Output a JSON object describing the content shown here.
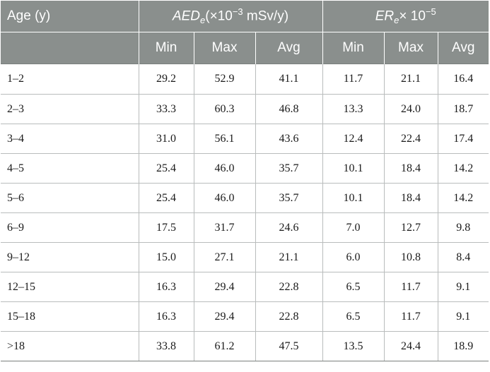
{
  "header": {
    "age_label": "Age (y)",
    "aed_base": "AED",
    "aed_sub": "e",
    "aed_tail": "(×10",
    "aed_exp": "−3",
    "aed_unit": " mSv/y)",
    "er_base": "ER",
    "er_sub": "e",
    "er_tail": "× 10",
    "er_exp": "−5",
    "sub_headers": [
      "Min",
      "Max",
      "Avg",
      "Min",
      "Max",
      "Avg"
    ]
  },
  "rows": [
    {
      "age": "1–2",
      "v": [
        "29.2",
        "52.9",
        "41.1",
        "11.7",
        "21.1",
        "16.4"
      ]
    },
    {
      "age": "2–3",
      "v": [
        "33.3",
        "60.3",
        "46.8",
        "13.3",
        "24.0",
        "18.7"
      ]
    },
    {
      "age": "3–4",
      "v": [
        "31.0",
        "56.1",
        "43.6",
        "12.4",
        "22.4",
        "17.4"
      ]
    },
    {
      "age": "4–5",
      "v": [
        "25.4",
        "46.0",
        "35.7",
        "10.1",
        "18.4",
        "14.2"
      ]
    },
    {
      "age": "5–6",
      "v": [
        "25.4",
        "46.0",
        "35.7",
        "10.1",
        "18.4",
        "14.2"
      ]
    },
    {
      "age": "6–9",
      "v": [
        "17.5",
        "31.7",
        "24.6",
        "7.0",
        "12.7",
        "9.8"
      ]
    },
    {
      "age": "9–12",
      "v": [
        "15.0",
        "27.1",
        "21.1",
        "6.0",
        "10.8",
        "8.4"
      ]
    },
    {
      "age": "12–15",
      "v": [
        "16.3",
        "29.4",
        "22.8",
        "6.5",
        "11.7",
        "9.1"
      ]
    },
    {
      "age": "15–18",
      "v": [
        "16.3",
        "29.4",
        "22.8",
        "6.5",
        "11.7",
        "9.1"
      ]
    },
    {
      "age": ">18",
      "v": [
        "33.8",
        "61.2",
        "47.5",
        "13.5",
        "24.4",
        "18.9"
      ]
    }
  ]
}
